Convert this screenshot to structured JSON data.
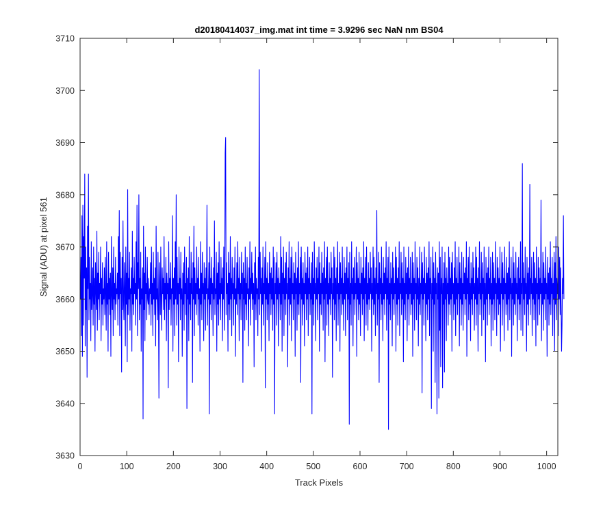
{
  "chart_data": {
    "type": "line",
    "title": "d20180414037_img.mat int time = 3.9296 sec  NaN nm BS04",
    "xlabel": "Track Pixels",
    "ylabel": "Signal (ADU) at pixel 561",
    "xlim": [
      0,
      1024
    ],
    "ylim": [
      3630,
      3710
    ],
    "xticks": [
      0,
      100,
      200,
      300,
      400,
      500,
      600,
      700,
      800,
      900,
      1000
    ],
    "yticks": [
      3630,
      3640,
      3650,
      3660,
      3670,
      3680,
      3690,
      3700,
      3710
    ],
    "grid": false,
    "legend": "none",
    "series": [
      {
        "color": "#0000ff",
        "x_start": 1,
        "x_step": 1,
        "values": [
          3660,
          3668,
          3653,
          3676,
          3649,
          3678,
          3655,
          3672,
          3664,
          3684,
          3651,
          3670,
          3658,
          3666,
          3645,
          3674,
          3662,
          3684,
          3656,
          3668,
          3660,
          3663,
          3652,
          3671,
          3658,
          3661,
          3666,
          3655,
          3670,
          3659,
          3664,
          3650,
          3667,
          3662,
          3658,
          3673,
          3654,
          3665,
          3660,
          3669,
          3656,
          3663,
          3661,
          3670,
          3652,
          3664,
          3659,
          3667,
          3655,
          3662,
          3660,
          3666,
          3657,
          3668,
          3661,
          3654,
          3671,
          3659,
          3663,
          3650,
          3669,
          3660,
          3664,
          3657,
          3665,
          3649,
          3672,
          3661,
          3658,
          3666,
          3653,
          3670,
          3660,
          3663,
          3656,
          3668,
          3659,
          3662,
          3661,
          3665,
          3655,
          3672,
          3660,
          3677,
          3653,
          3669,
          3661,
          3664,
          3646,
          3668,
          3658,
          3675,
          3660,
          3656,
          3667,
          3662,
          3651,
          3670,
          3659,
          3665,
          3648,
          3681,
          3657,
          3664,
          3660,
          3669,
          3654,
          3662,
          3661,
          3666,
          3650,
          3673,
          3659,
          3664,
          3657,
          3668,
          3661,
          3663,
          3655,
          3671,
          3660,
          3678,
          3653,
          3667,
          3662,
          3680,
          3656,
          3664,
          3659,
          3669,
          3650,
          3662,
          3660,
          3666,
          3637,
          3674,
          3658,
          3665,
          3652,
          3670,
          3661,
          3663,
          3656,
          3668,
          3660,
          3659,
          3664,
          3657,
          3662,
          3661,
          3667,
          3655,
          3670,
          3659,
          3663,
          3653,
          3669,
          3660,
          3664,
          3657,
          3666,
          3651,
          3674,
          3660,
          3662,
          3656,
          3669,
          3659,
          3641,
          3667,
          3663,
          3657,
          3670,
          3660,
          3654,
          3666,
          3661,
          3664,
          3658,
          3672,
          3656,
          3663,
          3660,
          3668,
          3652,
          3665,
          3661,
          3663,
          3643,
          3671,
          3658,
          3664,
          3660,
          3667,
          3655,
          3662,
          3661,
          3676,
          3650,
          3664,
          3659,
          3666,
          3653,
          3671,
          3660,
          3680,
          3655,
          3668,
          3659,
          3663,
          3648,
          3670,
          3661,
          3664,
          3656,
          3669,
          3660,
          3662,
          3649,
          3665,
          3659,
          3667,
          3654,
          3670,
          3661,
          3663,
          3657,
          3668,
          3639,
          3664,
          3660,
          3666,
          3652,
          3672,
          3659,
          3663,
          3656,
          3669,
          3661,
          3664,
          3644,
          3667,
          3660,
          3674,
          3653,
          3666,
          3659,
          3663,
          3657,
          3670,
          3661,
          3664,
          3655,
          3668,
          3660,
          3662,
          3650,
          3671,
          3659,
          3665,
          3656,
          3669,
          3661,
          3663,
          3652,
          3667,
          3660,
          3664,
          3654,
          3666,
          3661,
          3678,
          3655,
          3662,
          3660,
          3667,
          3638,
          3670,
          3659,
          3664,
          3656,
          3668,
          3661,
          3663,
          3653,
          3666,
          3660,
          3675,
          3657,
          3662,
          3661,
          3669,
          3650,
          3665,
          3659,
          3667,
          3655,
          3671,
          3660,
          3663,
          3656,
          3668,
          3661,
          3664,
          3652,
          3666,
          3660,
          3670,
          3654,
          3662,
          3688,
          3691,
          3657,
          3667,
          3661,
          3663,
          3650,
          3669,
          3659,
          3665,
          3656,
          3672,
          3660,
          3664,
          3653,
          3668,
          3661,
          3663,
          3655,
          3666,
          3660,
          3670,
          3649,
          3662,
          3659,
          3667,
          3657,
          3671,
          3661,
          3664,
          3652,
          3668,
          3660,
          3663,
          3656,
          3669,
          3661,
          3665,
          3644,
          3667,
          3660,
          3664,
          3654,
          3670,
          3659,
          3663,
          3656,
          3668,
          3661,
          3662,
          3651,
          3666,
          3660,
          3671,
          3655,
          3664,
          3661,
          3669,
          3658,
          3665,
          3660,
          3663,
          3647,
          3667,
          3659,
          3670,
          3656,
          3664,
          3661,
          3662,
          3653,
          3668,
          3660,
          3704,
          3657,
          3669,
          3661,
          3664,
          3650,
          3666,
          3659,
          3670,
          3655,
          3663,
          3661,
          3668,
          3643,
          3671,
          3660,
          3664,
          3656,
          3667,
          3659,
          3663,
          3652,
          3669,
          3661,
          3665,
          3657,
          3666,
          3660,
          3664,
          3654,
          3670,
          3659,
          3668,
          3638,
          3663,
          3661,
          3667,
          3655,
          3669,
          3660,
          3664,
          3651,
          3666,
          3661,
          3663,
          3656,
          3672,
          3659,
          3668,
          3650,
          3665,
          3661,
          3670,
          3653,
          3664,
          3660,
          3667,
          3657,
          3669,
          3661,
          3663,
          3647,
          3666,
          3660,
          3671,
          3655,
          3664,
          3659,
          3668,
          3652,
          3670,
          3661,
          3663,
          3656,
          3667,
          3660,
          3665,
          3649,
          3669,
          3661,
          3664,
          3654,
          3666,
          3659,
          3671,
          3657,
          3663,
          3661,
          3668,
          3644,
          3670,
          3660,
          3664,
          3655,
          3667,
          3659,
          3663,
          3651,
          3669,
          3661,
          3665,
          3656,
          3666,
          3660,
          3670,
          3653,
          3664,
          3661,
          3668,
          3657,
          3663,
          3660,
          3667,
          3638,
          3669,
          3659,
          3664,
          3655,
          3671,
          3661,
          3663,
          3652,
          3666,
          3660,
          3668,
          3656,
          3664,
          3661,
          3670,
          3650,
          3667,
          3659,
          3663,
          3657,
          3669,
          3661,
          3665,
          3654,
          3666,
          3660,
          3671,
          3648,
          3664,
          3661,
          3668,
          3655,
          3670,
          3659,
          3663,
          3653,
          3667,
          3660,
          3664,
          3657,
          3669,
          3661,
          3666,
          3645,
          3663,
          3660,
          3670,
          3656,
          3668,
          3659,
          3664,
          3652,
          3666,
          3661,
          3671,
          3655,
          3663,
          3660,
          3669,
          3650,
          3667,
          3661,
          3664,
          3657,
          3670,
          3659,
          3663,
          3654,
          3668,
          3660,
          3665,
          3653,
          3666,
          3661,
          3670,
          3656,
          3664,
          3660,
          3667,
          3636,
          3669,
          3659,
          3663,
          3655,
          3671,
          3661,
          3664,
          3651,
          3666,
          3660,
          3668,
          3657,
          3663,
          3661,
          3670,
          3649,
          3667,
          3660,
          3664,
          3656,
          3669,
          3659,
          3663,
          3653,
          3668,
          3661,
          3665,
          3657,
          3666,
          3660,
          3671,
          3652,
          3664,
          3661,
          3668,
          3655,
          3670,
          3659,
          3663,
          3654,
          3667,
          3660,
          3664,
          3658,
          3669,
          3661,
          3666,
          3650,
          3663,
          3660,
          3670,
          3657,
          3668,
          3659,
          3664,
          3653,
          3666,
          3661,
          3677,
          3655,
          3663,
          3660,
          3669,
          3644,
          3667,
          3661,
          3664,
          3656,
          3670,
          3659,
          3663,
          3652,
          3668,
          3660,
          3665,
          3657,
          3666,
          3661,
          3671,
          3654,
          3664,
          3660,
          3668,
          3635,
          3670,
          3659,
          3663,
          3656,
          3667,
          3661,
          3664,
          3651,
          3669,
          3660,
          3666,
          3657,
          3663,
          3661,
          3670,
          3650,
          3668,
          3659,
          3664,
          3655,
          3666,
          3660,
          3671,
          3653,
          3663,
          3661,
          3669,
          3657,
          3667,
          3660,
          3664,
          3648,
          3670,
          3659,
          3663,
          3656,
          3668,
          3661,
          3665,
          3652,
          3666,
          3660,
          3670,
          3655,
          3664,
          3661,
          3668,
          3657,
          3663,
          3659,
          3669,
          3649,
          3667,
          3660,
          3664,
          3654,
          3671,
          3661,
          3663,
          3656,
          3668,
          3660,
          3666,
          3651,
          3664,
          3659,
          3670,
          3657,
          3663,
          3661,
          3669,
          3642,
          3667,
          3660,
          3664,
          3655,
          3670,
          3661,
          3663,
          3652,
          3668,
          3659,
          3665,
          3656,
          3666,
          3660,
          3671,
          3653,
          3664,
          3661,
          3668,
          3639,
          3663,
          3660,
          3670,
          3650,
          3667,
          3659,
          3664,
          3644,
          3669,
          3661,
          3663,
          3638,
          3666,
          3660,
          3665,
          3641,
          3671,
          3654,
          3668,
          3647,
          3664,
          3661,
          3670,
          3643,
          3663,
          3659,
          3667,
          3646,
          3669,
          3660,
          3664,
          3652,
          3666,
          3661,
          3663,
          3655,
          3670,
          3659,
          3668,
          3657,
          3664,
          3660,
          3667,
          3650,
          3669,
          3661,
          3663,
          3656,
          3666,
          3659,
          3671,
          3653,
          3664,
          3660,
          3668,
          3657,
          3663,
          3661,
          3670,
          3651,
          3667,
          3660,
          3664,
          3655,
          3669,
          3659,
          3663,
          3654,
          3668,
          3661,
          3665,
          3657,
          3666,
          3660,
          3671,
          3649,
          3664,
          3661,
          3668,
          3656,
          3670,
          3659,
          3663,
          3652,
          3667,
          3660,
          3664,
          3657,
          3669,
          3661,
          3666,
          3654,
          3663,
          3660,
          3670,
          3655,
          3668,
          3659,
          3664,
          3650,
          3666,
          3661,
          3671,
          3657,
          3663,
          3660,
          3669,
          3653,
          3667,
          3661,
          3664,
          3656,
          3670,
          3659,
          3663,
          3648,
          3668,
          3660,
          3665,
          3655,
          3666,
          3661,
          3670,
          3657,
          3664,
          3660,
          3668,
          3651,
          3663,
          3659,
          3669,
          3654,
          3667,
          3660,
          3664,
          3656,
          3671,
          3661,
          3663,
          3653,
          3668,
          3660,
          3666,
          3657,
          3664,
          3659,
          3670,
          3650,
          3663,
          3661,
          3669,
          3655,
          3667,
          3660,
          3664,
          3652,
          3670,
          3661,
          3663,
          3657,
          3668,
          3659,
          3665,
          3654,
          3666,
          3660,
          3671,
          3656,
          3664,
          3661,
          3668,
          3649,
          3663,
          3660,
          3670,
          3655,
          3667,
          3659,
          3664,
          3657,
          3669,
          3661,
          3663,
          3652,
          3666,
          3660,
          3668,
          3656,
          3664,
          3659,
          3671,
          3654,
          3663,
          3661,
          3686,
          3653,
          3667,
          3660,
          3664,
          3657,
          3670,
          3661,
          3663,
          3650,
          3668,
          3659,
          3665,
          3655,
          3666,
          3660,
          3682,
          3657,
          3664,
          3661,
          3668,
          3653,
          3663,
          3660,
          3669,
          3656,
          3667,
          3659,
          3664,
          3651,
          3670,
          3661,
          3663,
          3655,
          3668,
          3660,
          3666,
          3657,
          3664,
          3661,
          3679,
          3652,
          3663,
          3659,
          3669,
          3654,
          3667,
          3660,
          3664,
          3656,
          3670,
          3661,
          3663,
          3649,
          3668,
          3660,
          3665,
          3655,
          3666,
          3659,
          3671,
          3657,
          3664,
          3661,
          3668,
          3653,
          3663,
          3660,
          3669,
          3650,
          3667,
          3659,
          3672,
          3656,
          3664,
          3661,
          3663,
          3653,
          3670,
          3660,
          3668,
          3657,
          3666,
          3659,
          3650,
          3655,
          3664,
          3661,
          3676,
          3660
        ]
      }
    ]
  }
}
